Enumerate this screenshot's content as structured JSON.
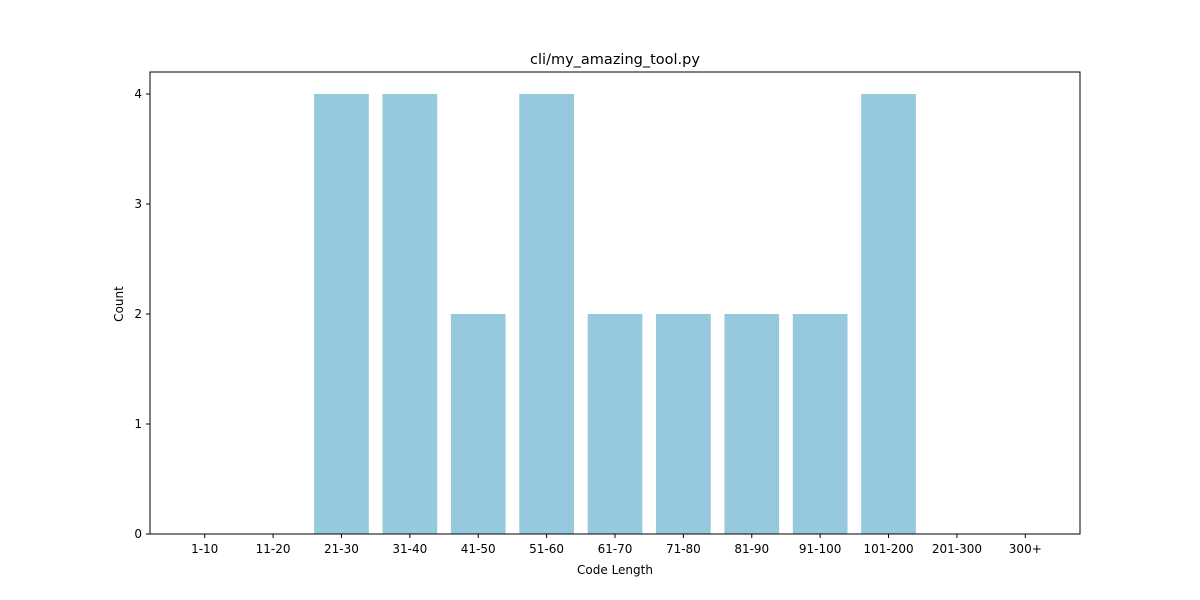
{
  "chart_data": {
    "type": "bar",
    "title": "cli/my_amazing_tool.py",
    "xlabel": "Code Length",
    "ylabel": "Count",
    "categories": [
      "1-10",
      "11-20",
      "21-30",
      "31-40",
      "41-50",
      "51-60",
      "61-70",
      "71-80",
      "81-90",
      "91-100",
      "101-200",
      "201-300",
      "300+"
    ],
    "values": [
      0,
      0,
      4,
      4,
      2,
      4,
      2,
      2,
      2,
      2,
      4,
      0,
      0
    ],
    "ylim": [
      0,
      4.2
    ],
    "yticks": [
      0,
      1,
      2,
      3,
      4
    ],
    "grid": false,
    "legend": "none",
    "bar_color": "#96c9de"
  }
}
